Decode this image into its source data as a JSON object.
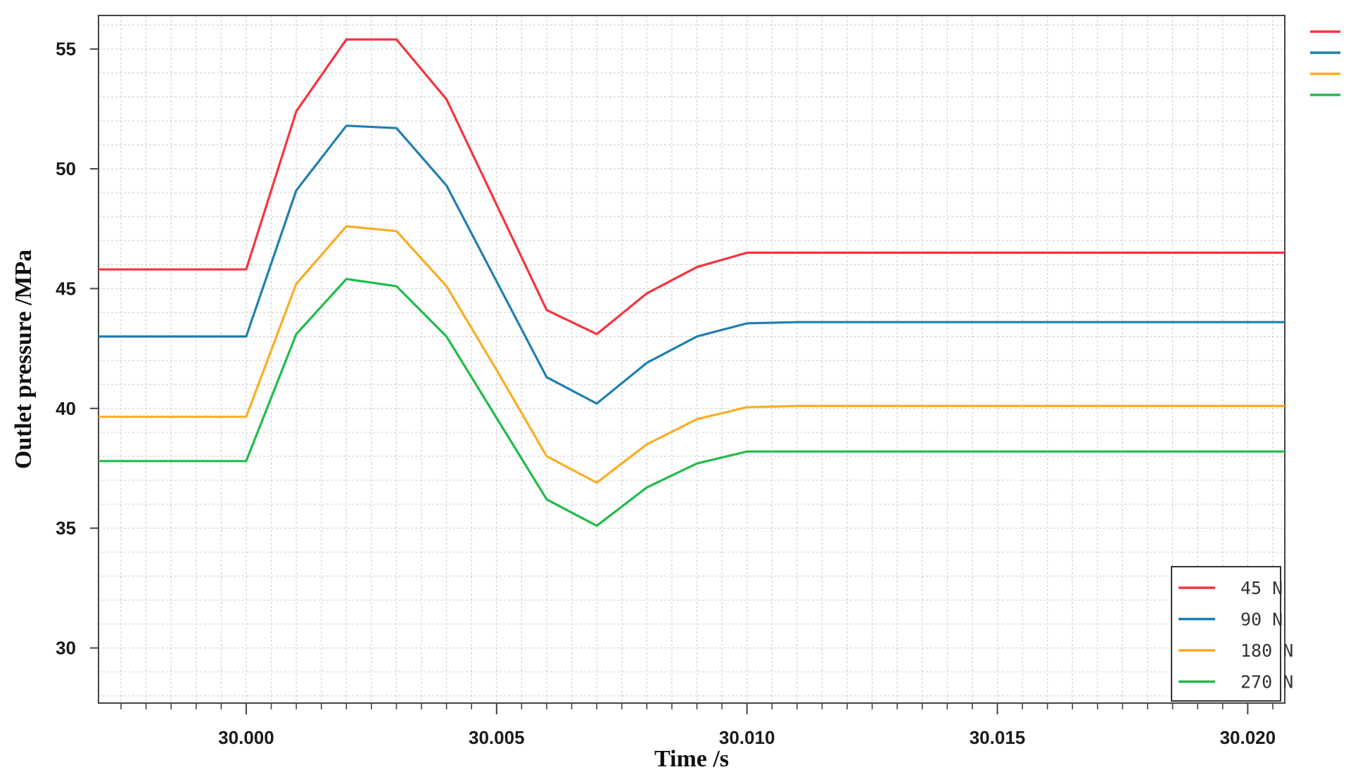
{
  "chart_data": {
    "type": "line",
    "title": "",
    "xlabel": "Time /s",
    "ylabel": "Outlet pressure /MPa",
    "xlim": [
      29.99705,
      30.02074
    ],
    "ylim": [
      27.7,
      56.4
    ],
    "x_ticks": [
      30.0,
      30.005,
      30.01,
      30.015,
      30.02
    ],
    "x_tick_labels": [
      "30.000",
      "30.005",
      "30.010",
      "30.015",
      "30.020"
    ],
    "y_ticks": [
      30,
      35,
      40,
      45,
      50,
      55
    ],
    "y_tick_labels": [
      "30",
      "35",
      "40",
      "45",
      "50",
      "55"
    ],
    "grid": true,
    "legend_position": "bottom-right",
    "x": [
      29.99705,
      30.0,
      30.001,
      30.002,
      30.003,
      30.004,
      30.005,
      30.006,
      30.007,
      30.008,
      30.009,
      30.01,
      30.011,
      30.02074
    ],
    "series": [
      {
        "name": "45 N",
        "color": "#f5333f",
        "values": [
          45.8,
          45.8,
          52.4,
          55.4,
          55.4,
          52.9,
          48.5,
          44.1,
          43.1,
          44.8,
          45.9,
          46.5,
          46.5,
          46.5
        ]
      },
      {
        "name": "90 N",
        "color": "#1f7fb0",
        "values": [
          43.0,
          43.0,
          49.1,
          51.8,
          51.7,
          49.3,
          45.3,
          41.3,
          40.2,
          41.9,
          43.0,
          43.55,
          43.6,
          43.6
        ]
      },
      {
        "name": "180 N",
        "color": "#fbac22",
        "values": [
          39.65,
          39.65,
          45.2,
          47.6,
          47.4,
          45.1,
          41.6,
          38.0,
          36.9,
          38.5,
          39.55,
          40.05,
          40.1,
          40.1
        ]
      },
      {
        "name": "270 N",
        "color": "#1fbc4a",
        "values": [
          37.8,
          37.8,
          43.1,
          45.4,
          45.1,
          43.0,
          39.6,
          36.2,
          35.1,
          36.7,
          37.7,
          38.2,
          38.2,
          38.2
        ]
      }
    ]
  }
}
